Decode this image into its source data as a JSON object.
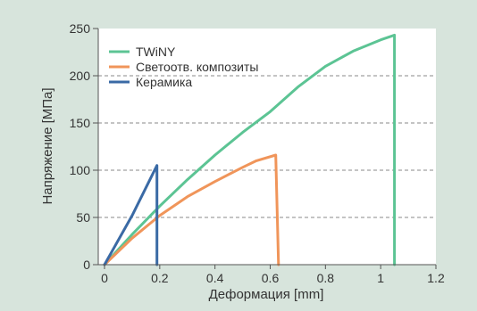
{
  "chart_data": {
    "type": "line",
    "xlabel": "Деформация [mm]",
    "ylabel": "Напряжение [МПа]",
    "xlim": [
      0,
      1.2
    ],
    "ylim": [
      0,
      250
    ],
    "x_ticks": [
      0,
      0.2,
      0.4,
      0.6,
      0.8,
      1,
      1.2
    ],
    "x_tick_labels": [
      "0",
      "0.2",
      "0.4",
      "0.6",
      "0.8",
      "1",
      "1.2"
    ],
    "y_ticks": [
      0,
      50,
      100,
      150,
      200,
      250
    ],
    "y_tick_labels": [
      "0",
      "50",
      "100",
      "150",
      "200",
      "250"
    ],
    "grid": "horizontal dashed at 50, 100, 150, 200",
    "legend_position": "top-left",
    "background_color": "#d7e4dc",
    "plot_background_color": "#ffffff",
    "series": [
      {
        "name": "TWiNY",
        "color": "#5cc494",
        "points": [
          [
            0.0,
            0
          ],
          [
            0.1,
            32
          ],
          [
            0.2,
            62
          ],
          [
            0.3,
            90
          ],
          [
            0.4,
            116
          ],
          [
            0.5,
            140
          ],
          [
            0.6,
            162
          ],
          [
            0.7,
            188
          ],
          [
            0.8,
            210
          ],
          [
            0.9,
            226
          ],
          [
            1.0,
            238
          ],
          [
            1.05,
            243
          ],
          [
            1.05,
            0
          ]
        ]
      },
      {
        "name": "Светоотв. композиты",
        "color": "#f0955a",
        "points": [
          [
            0.0,
            0
          ],
          [
            0.1,
            28
          ],
          [
            0.2,
            52
          ],
          [
            0.3,
            72
          ],
          [
            0.4,
            88
          ],
          [
            0.5,
            103
          ],
          [
            0.55,
            110
          ],
          [
            0.62,
            116
          ],
          [
            0.63,
            0
          ]
        ]
      },
      {
        "name": "Керамика",
        "color": "#3a6aa5",
        "points": [
          [
            0.0,
            0
          ],
          [
            0.1,
            52
          ],
          [
            0.19,
            105
          ],
          [
            0.19,
            0
          ]
        ]
      }
    ]
  }
}
